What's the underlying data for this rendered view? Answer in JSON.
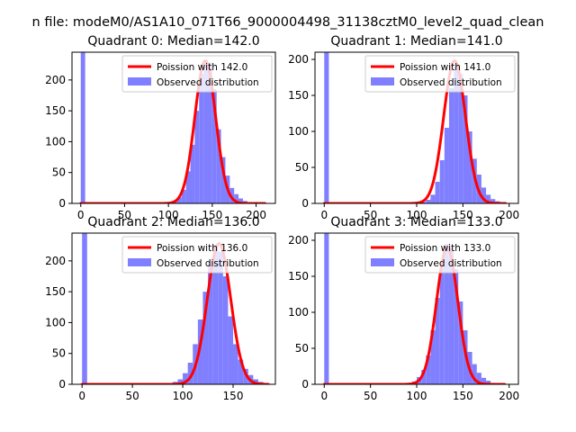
{
  "figure": {
    "suptitle": "n file: modeM0/AS1A10_071T66_9000004498_31138cztM0_level2_quad_clean"
  },
  "colors": {
    "hist": "#7f7fff",
    "curve": "#ff0000",
    "axis": "#000000"
  },
  "chart_data": [
    {
      "type": "bar",
      "title": "Quadrant 0: Median=142.0",
      "legend": [
        "Poission with 142.0",
        "Observed distribution"
      ],
      "legend_loc": "top-right",
      "xlim": [
        -10,
        222
      ],
      "ylim": [
        0,
        245
      ],
      "xticks": [
        0,
        50,
        100,
        150,
        200
      ],
      "yticks": [
        0,
        50,
        100,
        150,
        200
      ],
      "xtick_labels": [
        "0",
        "50",
        "100",
        "150",
        "200"
      ],
      "ytick_labels": [
        "0",
        "50",
        "100",
        "150",
        "200"
      ],
      "bin_width": 5,
      "hist": [
        [
          0,
          245
        ],
        [
          100,
          2
        ],
        [
          105,
          4
        ],
        [
          110,
          10
        ],
        [
          115,
          22
        ],
        [
          120,
          52
        ],
        [
          125,
          95
        ],
        [
          130,
          150
        ],
        [
          135,
          210
        ],
        [
          140,
          232
        ],
        [
          145,
          228
        ],
        [
          150,
          185
        ],
        [
          155,
          120
        ],
        [
          160,
          75
        ],
        [
          165,
          45
        ],
        [
          170,
          25
        ],
        [
          175,
          15
        ],
        [
          180,
          8
        ],
        [
          185,
          4
        ],
        [
          190,
          1
        ]
      ],
      "poisson_mean": 142.0,
      "poisson_scale": 231,
      "curve_range": [
        0,
        210
      ]
    },
    {
      "type": "bar",
      "title": "Quadrant 1: Median=141.0",
      "legend": [
        "Poission with 141.0",
        "Observed distribution"
      ],
      "legend_loc": "top-right",
      "xlim": [
        -10,
        210
      ],
      "ylim": [
        0,
        210
      ],
      "xticks": [
        0,
        50,
        100,
        150,
        200
      ],
      "yticks": [
        0,
        50,
        100,
        150,
        200
      ],
      "xtick_labels": [
        "0",
        "50",
        "100",
        "150",
        "200"
      ],
      "ytick_labels": [
        "0",
        "50",
        "100",
        "150",
        "200"
      ],
      "bin_width": 5,
      "hist": [
        [
          0,
          210
        ],
        [
          105,
          2
        ],
        [
          110,
          5
        ],
        [
          115,
          12
        ],
        [
          120,
          30
        ],
        [
          125,
          60
        ],
        [
          130,
          105
        ],
        [
          135,
          160
        ],
        [
          140,
          190
        ],
        [
          145,
          180
        ],
        [
          150,
          150
        ],
        [
          155,
          100
        ],
        [
          160,
          62
        ],
        [
          165,
          40
        ],
        [
          170,
          22
        ],
        [
          175,
          12
        ],
        [
          180,
          6
        ],
        [
          185,
          3
        ]
      ],
      "poisson_mean": 141.0,
      "poisson_scale": 198,
      "curve_range": [
        0,
        196
      ]
    },
    {
      "type": "bar",
      "title": "Quadrant 2: Median=136.0",
      "legend": [
        "Poission with 136.0",
        "Observed distribution"
      ],
      "legend_loc": "top-right",
      "xlim": [
        -10,
        192
      ],
      "ylim": [
        0,
        245
      ],
      "xticks": [
        0,
        50,
        100,
        150
      ],
      "yticks": [
        0,
        50,
        100,
        150,
        200
      ],
      "xtick_labels": [
        "0",
        "50",
        "100",
        "150"
      ],
      "ytick_labels": [
        "0",
        "50",
        "100",
        "150",
        "200"
      ],
      "bin_width": 5,
      "hist": [
        [
          0,
          245
        ],
        [
          55,
          2
        ],
        [
          85,
          2
        ],
        [
          90,
          4
        ],
        [
          95,
          8
        ],
        [
          100,
          18
        ],
        [
          105,
          35
        ],
        [
          110,
          65
        ],
        [
          115,
          105
        ],
        [
          120,
          150
        ],
        [
          125,
          200
        ],
        [
          130,
          225
        ],
        [
          135,
          215
        ],
        [
          140,
          175
        ],
        [
          145,
          110
        ],
        [
          150,
          65
        ],
        [
          155,
          40
        ],
        [
          160,
          25
        ],
        [
          165,
          15
        ],
        [
          170,
          8
        ],
        [
          175,
          4
        ],
        [
          180,
          2
        ]
      ],
      "poisson_mean": 136.0,
      "poisson_scale": 228,
      "curve_range": [
        0,
        185
      ]
    },
    {
      "type": "bar",
      "title": "Quadrant 3: Median=133.0",
      "legend": [
        "Poission with 133.0",
        "Observed distribution"
      ],
      "legend_loc": "top-right",
      "xlim": [
        -10,
        210
      ],
      "ylim": [
        0,
        210
      ],
      "xticks": [
        0,
        50,
        100,
        150,
        200
      ],
      "yticks": [
        0,
        50,
        100,
        150,
        200
      ],
      "xtick_labels": [
        "0",
        "50",
        "100",
        "150",
        "200"
      ],
      "ytick_labels": [
        "0",
        "50",
        "100",
        "150",
        "200"
      ],
      "bin_width": 5,
      "hist": [
        [
          0,
          210
        ],
        [
          90,
          2
        ],
        [
          95,
          4
        ],
        [
          100,
          10
        ],
        [
          105,
          20
        ],
        [
          110,
          40
        ],
        [
          115,
          75
        ],
        [
          120,
          120
        ],
        [
          125,
          165
        ],
        [
          130,
          195
        ],
        [
          135,
          190
        ],
        [
          140,
          160
        ],
        [
          145,
          115
        ],
        [
          150,
          75
        ],
        [
          155,
          45
        ],
        [
          160,
          28
        ],
        [
          165,
          16
        ],
        [
          170,
          9
        ],
        [
          175,
          5
        ],
        [
          180,
          2
        ]
      ],
      "poisson_mean": 133.0,
      "poisson_scale": 190,
      "curve_range": [
        0,
        195
      ]
    }
  ]
}
